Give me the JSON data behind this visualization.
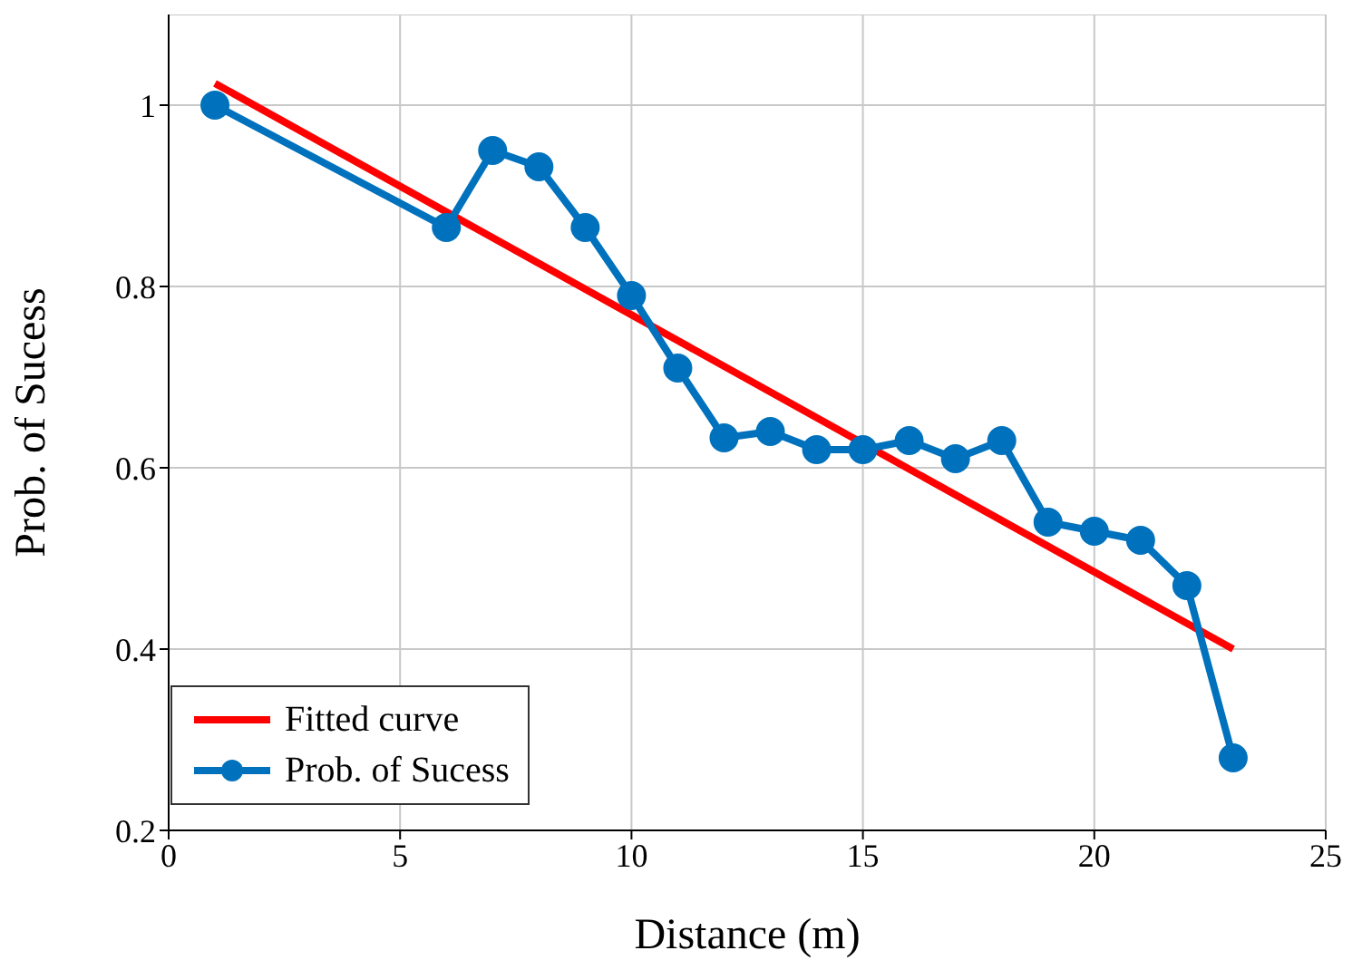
{
  "chart_data": {
    "type": "line",
    "xlabel": "Distance (m)",
    "ylabel": "Prob. of Sucess",
    "xlim": [
      0,
      25
    ],
    "xticks": [
      0,
      5,
      10,
      15,
      20,
      25
    ],
    "ylim": [
      0.2,
      1.1
    ],
    "yticks": [
      0.2,
      0.4,
      0.6,
      0.8,
      1
    ],
    "grid": true,
    "legend": "bottom left",
    "line_style": "solid",
    "series": [
      {
        "name": "Fitted curve",
        "color": "#ff0000",
        "marker": "none",
        "x": [
          1,
          23
        ],
        "values": [
          1.024,
          0.4
        ]
      },
      {
        "name": "Prob. of Sucess",
        "color": "#0072bd",
        "marker": "circle",
        "x": [
          1,
          6,
          7,
          8,
          9,
          10,
          11,
          12,
          13,
          14,
          15,
          16,
          17,
          18,
          19,
          20,
          21,
          22,
          23
        ],
        "values": [
          1.0,
          0.865,
          0.95,
          0.932,
          0.865,
          0.79,
          0.71,
          0.633,
          0.64,
          0.62,
          0.62,
          0.63,
          0.61,
          0.63,
          0.54,
          0.53,
          0.52,
          0.47,
          0.28
        ]
      }
    ]
  }
}
